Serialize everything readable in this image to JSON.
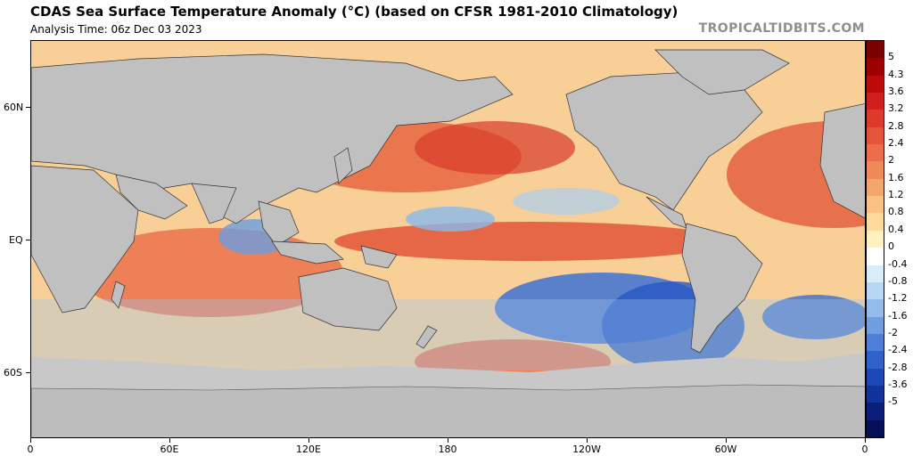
{
  "header": {
    "title": "CDAS Sea Surface Temperature Anomaly (°C) (based on CFSR 1981-2010 Climatology)",
    "subtitle": "Analysis Time: 06z Dec 03 2023",
    "brand": "TROPICALTIDBITS.COM"
  },
  "map": {
    "latitude_labels": [
      "60N",
      "EQ",
      "60S"
    ],
    "longitude_labels": [
      "0",
      "60E",
      "120E",
      "180",
      "120W",
      "60W",
      "0"
    ],
    "land_color": "#c0c0c0",
    "ice_color": "#c8c8c8"
  },
  "colorbar": {
    "labels": [
      "5",
      "4.3",
      "3.6",
      "3.2",
      "2.8",
      "2.4",
      "2",
      "1.6",
      "1.2",
      "0.8",
      "0.4",
      "0",
      "-0.4",
      "-0.8",
      "-1.2",
      "-1.6",
      "-2",
      "-2.4",
      "-2.8",
      "-3.6",
      "-5"
    ],
    "colors": [
      "#7a0000",
      "#9e0000",
      "#bd0b0b",
      "#d11f1f",
      "#dc3a2c",
      "#e5553c",
      "#ec6e48",
      "#f18a59",
      "#f5a66d",
      "#f9c183",
      "#fcdb9c",
      "#fff2c0",
      "#ffffff",
      "#d9ecf9",
      "#b7d7f3",
      "#93bce9",
      "#6f9fe0",
      "#4d80d6",
      "#3063c9",
      "#1d49b5",
      "#12339a",
      "#0b1f7a",
      "#040f55"
    ]
  }
}
